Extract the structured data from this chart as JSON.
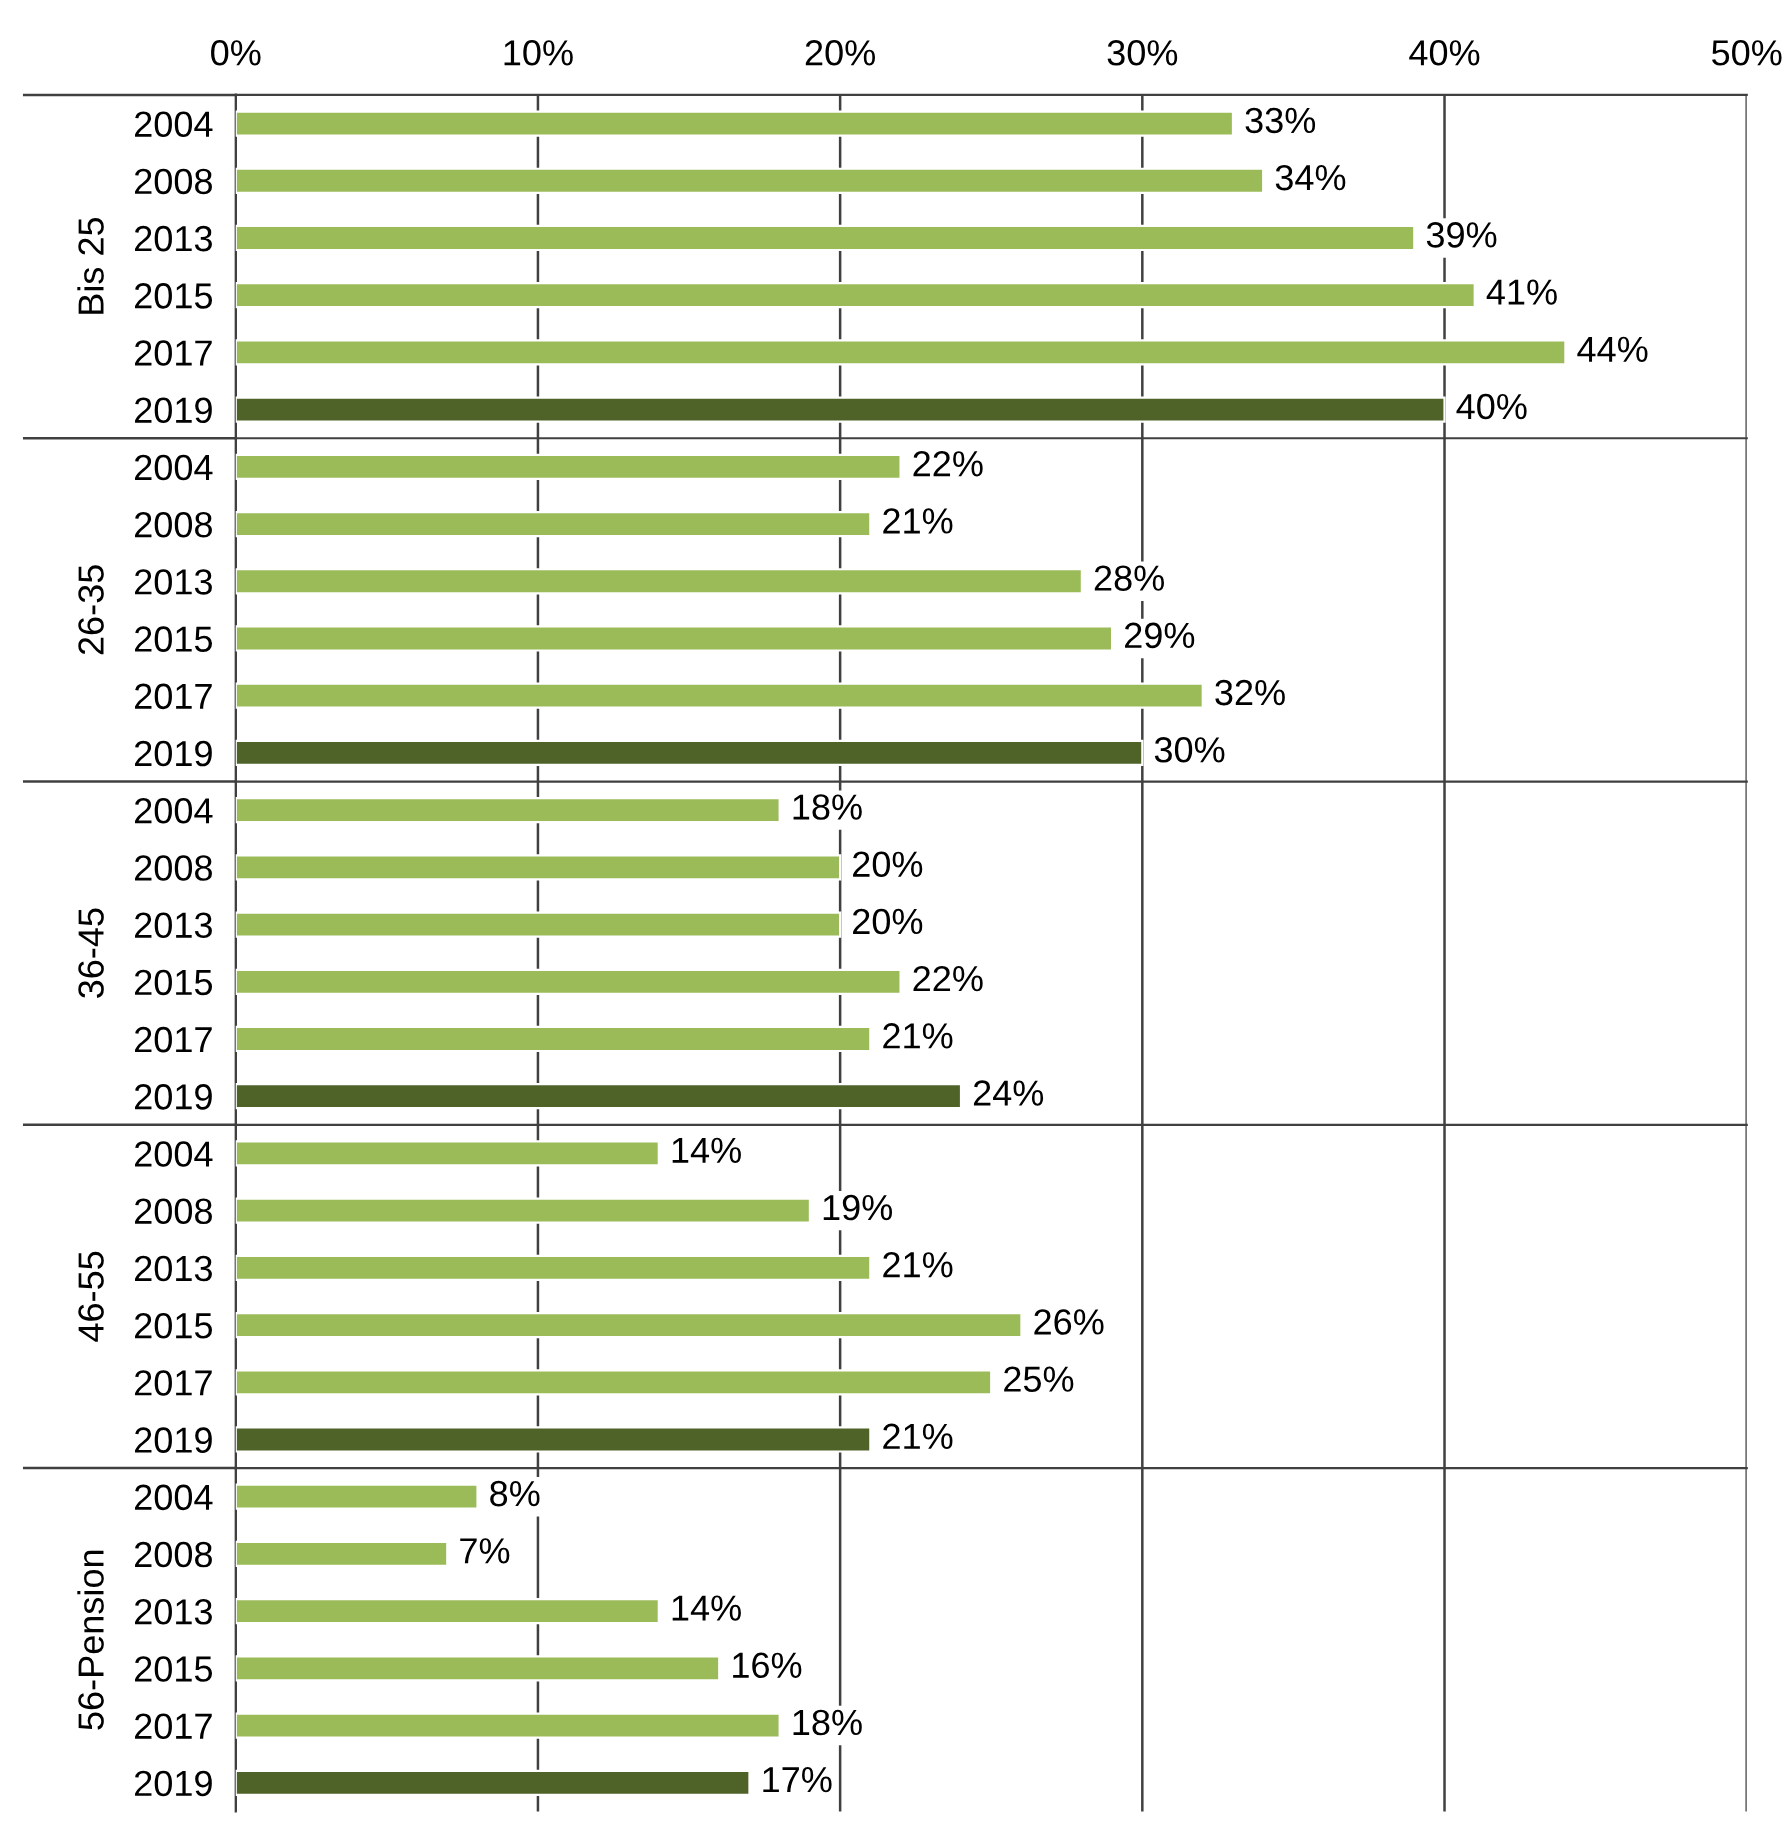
{
  "chart_data": [
    {
      "type": "bar",
      "orientation": "horizontal",
      "ylabel": "Bis 25",
      "categories": [
        "2004",
        "2008",
        "2013",
        "2015",
        "2017",
        "2019"
      ],
      "values": [
        33,
        34,
        39,
        41,
        44,
        40
      ],
      "value_labels": [
        "33%",
        "34%",
        "39%",
        "41%",
        "44%",
        "40%"
      ],
      "colors": [
        "#9bbb59",
        "#9bbb59",
        "#9bbb59",
        "#9bbb59",
        "#9bbb59",
        "#4f6228"
      ],
      "xlim": [
        0,
        50
      ],
      "xticks": [
        {
          "value": 0,
          "label": "0%"
        },
        {
          "value": 10,
          "label": "10%"
        },
        {
          "value": 20,
          "label": "20%"
        },
        {
          "value": 30,
          "label": "30%"
        },
        {
          "value": 40,
          "label": "40%"
        },
        {
          "value": 50,
          "label": "50%"
        }
      ],
      "grid": "x"
    },
    {
      "type": "bar",
      "orientation": "horizontal",
      "ylabel": "26-35",
      "categories": [
        "2004",
        "2008",
        "2013",
        "2015",
        "2017",
        "2019"
      ],
      "values": [
        22,
        21,
        28,
        29,
        32,
        30
      ],
      "value_labels": [
        "22%",
        "21%",
        "28%",
        "29%",
        "32%",
        "30%"
      ],
      "colors": [
        "#9bbb59",
        "#9bbb59",
        "#9bbb59",
        "#9bbb59",
        "#9bbb59",
        "#4f6228"
      ],
      "xlim": [
        0,
        50
      ],
      "xticks": [
        {
          "value": 0,
          "label": null
        },
        {
          "value": 10,
          "label": null
        },
        {
          "value": 20,
          "label": null
        },
        {
          "value": 30,
          "label": null
        },
        {
          "value": 40,
          "label": null
        },
        {
          "value": 50,
          "label": null
        }
      ],
      "grid": "x",
      "tick_labels": "y"
    },
    {
      "type": "bar",
      "orientation": "horizontal",
      "ylabel": "36-45",
      "categories": [
        "2004",
        "2008",
        "2013",
        "2015",
        "2017",
        "2019"
      ],
      "values": [
        18,
        20,
        20,
        22,
        21,
        24
      ],
      "value_labels": [
        "18%",
        "20%",
        "20%",
        "22%",
        "21%",
        "24%"
      ],
      "colors": [
        "#9bbb59",
        "#9bbb59",
        "#9bbb59",
        "#9bbb59",
        "#9bbb59",
        "#4f6228"
      ],
      "xlim": [
        0,
        50
      ],
      "xticks": [
        {
          "value": 0,
          "label": null
        },
        {
          "value": 10,
          "label": null
        },
        {
          "value": 20,
          "label": null
        },
        {
          "value": 30,
          "label": null
        },
        {
          "value": 40,
          "label": null
        },
        {
          "value": 50,
          "label": null
        }
      ],
      "grid": "x",
      "tick_labels": "y"
    },
    {
      "type": "bar",
      "orientation": "horizontal",
      "ylabel": "46-55",
      "categories": [
        "2004",
        "2008",
        "2013",
        "2015",
        "2017",
        "2019"
      ],
      "values": [
        14,
        19,
        21,
        26,
        25,
        21
      ],
      "value_labels": [
        "14%",
        "19%",
        "21%",
        "26%",
        "25%",
        "21%"
      ],
      "colors": [
        "#9bbb59",
        "#9bbb59",
        "#9bbb59",
        "#9bbb59",
        "#9bbb59",
        "#4f6228"
      ],
      "xlim": [
        0,
        50
      ],
      "xticks": [
        {
          "value": 0,
          "label": null
        },
        {
          "value": 10,
          "label": null
        },
        {
          "value": 20,
          "label": null
        },
        {
          "value": 30,
          "label": null
        },
        {
          "value": 40,
          "label": null
        },
        {
          "value": 50,
          "label": null
        }
      ],
      "grid": "x",
      "tick_labels": "y"
    },
    {
      "type": "bar",
      "orientation": "horizontal",
      "ylabel": "56-Pension",
      "categories": [
        "2004",
        "2008",
        "2013",
        "2015",
        "2017",
        "2019"
      ],
      "values": [
        8,
        7,
        14,
        16,
        18,
        17
      ],
      "value_labels": [
        "8%",
        "7%",
        "14%",
        "16%",
        "18%",
        "17%"
      ],
      "colors": [
        "#9bbb59",
        "#9bbb59",
        "#9bbb59",
        "#9bbb59",
        "#9bbb59",
        "#4f6228"
      ],
      "xlim": [
        0,
        50
      ],
      "xticks": [
        {
          "value": 0,
          "label": null
        },
        {
          "value": 10,
          "label": null
        },
        {
          "value": 20,
          "label": null
        },
        {
          "value": 30,
          "label": null
        },
        {
          "value": 40,
          "label": null
        },
        {
          "value": 50,
          "label": null
        }
      ],
      "grid": "x",
      "tick_labels": "y"
    }
  ]
}
